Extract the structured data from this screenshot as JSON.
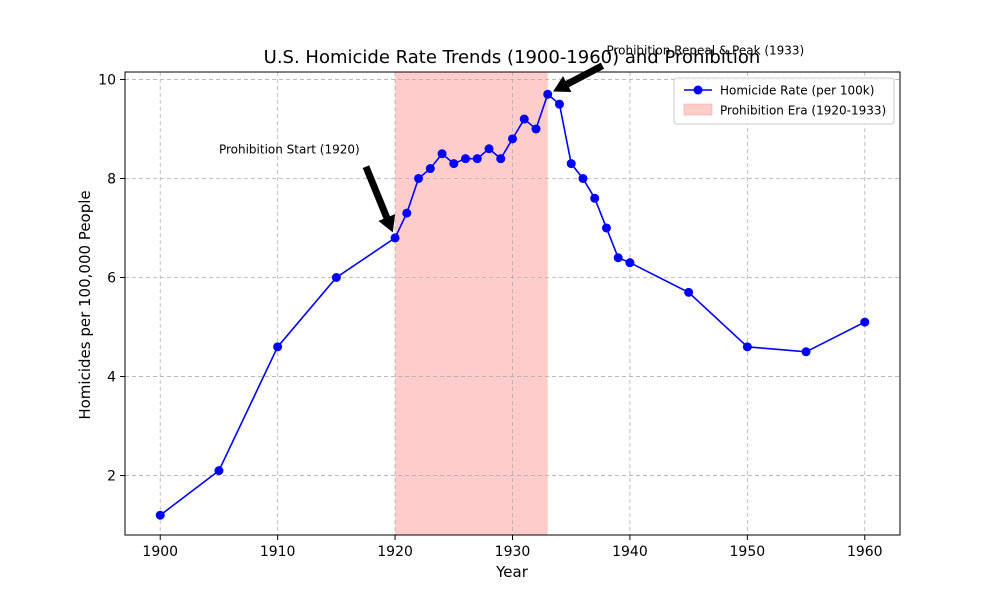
{
  "chart_data": {
    "type": "line",
    "title": "U.S. Homicide Rate Trends (1900-1960) and Prohibition",
    "xlabel": "Year",
    "ylabel": "Homicides per 100,000 People",
    "xlim": [
      1897,
      1963
    ],
    "ylim": [
      0.8,
      10.15
    ],
    "xticks": [
      1900,
      1910,
      1920,
      1930,
      1940,
      1950,
      1960
    ],
    "yticks": [
      2,
      4,
      6,
      8,
      10
    ],
    "grid": true,
    "series": [
      {
        "name": "Homicide Rate (per 100k)",
        "color": "#0000ff",
        "marker": "circle",
        "x": [
          1900,
          1905,
          1910,
          1915,
          1920,
          1921,
          1922,
          1923,
          1924,
          1925,
          1926,
          1927,
          1928,
          1929,
          1930,
          1931,
          1932,
          1933,
          1934,
          1935,
          1936,
          1937,
          1938,
          1939,
          1940,
          1945,
          1950,
          1955,
          1960
        ],
        "values": [
          1.2,
          2.1,
          4.6,
          6.0,
          6.8,
          7.3,
          8.0,
          8.2,
          8.5,
          8.3,
          8.4,
          8.4,
          8.6,
          8.4,
          8.8,
          9.2,
          9.0,
          9.7,
          9.5,
          8.3,
          8.0,
          7.6,
          7.0,
          6.4,
          6.3,
          5.7,
          4.6,
          4.5,
          5.1
        ]
      }
    ],
    "shaded_region": {
      "label": "Prohibition Era (1920-1933)",
      "x_start": 1920,
      "x_end": 1933,
      "color": "#ffcccc"
    },
    "annotations": [
      {
        "text": "Prohibition Start (1920)",
        "point_x": 1920,
        "point_y": 6.8,
        "text_x": 1905,
        "text_y": 8.5
      },
      {
        "text": "Prohibition Repeal & Peak (1933)",
        "point_x": 1933,
        "point_y": 9.7,
        "text_x": 1938,
        "text_y": 10.5
      }
    ],
    "legend_position": "top-right"
  }
}
